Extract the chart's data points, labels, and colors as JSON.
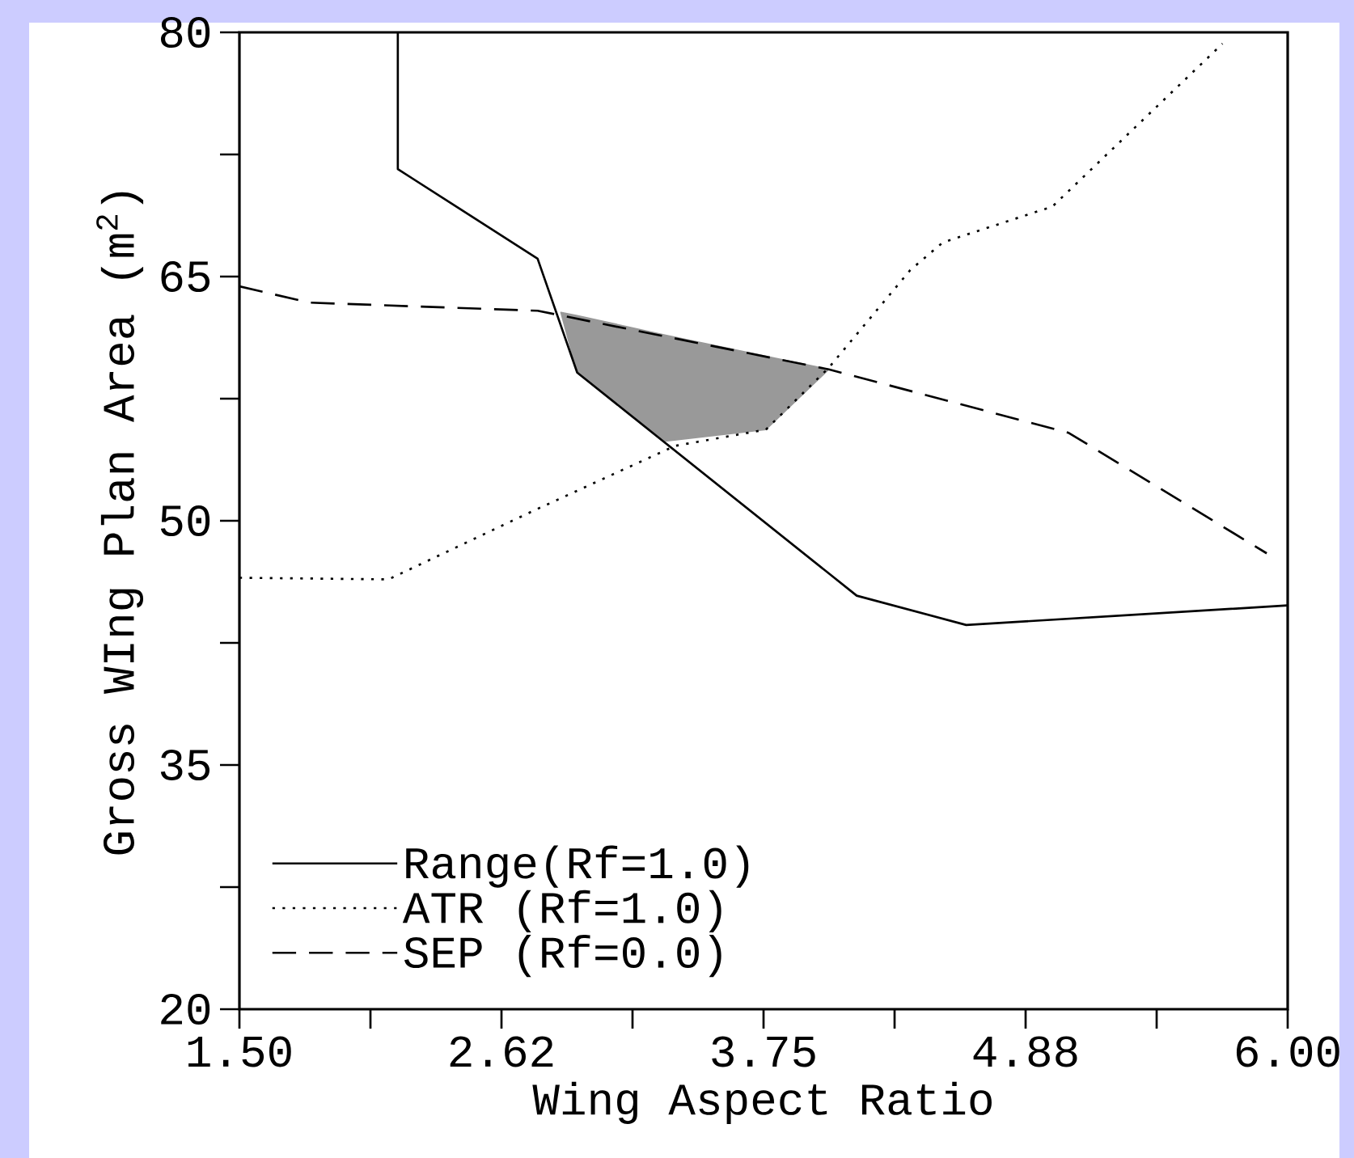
{
  "chart_data": {
    "type": "line",
    "xlabel": "Wing Aspect Ratio",
    "ylabel": "Gross WIng Plan Area (m$^{2}$)",
    "xlim": [
      1.5,
      6.0
    ],
    "ylim": [
      20,
      80
    ],
    "xticks": [
      {
        "value": 1.5,
        "label": "1.50"
      },
      {
        "value": 2.0625,
        "label": null
      },
      {
        "value": 2.625,
        "label": "2.62"
      },
      {
        "value": 3.1875,
        "label": null
      },
      {
        "value": 3.75,
        "label": "3.75"
      },
      {
        "value": 4.3125,
        "label": null
      },
      {
        "value": 4.875,
        "label": "4.88"
      },
      {
        "value": 5.4375,
        "label": null
      },
      {
        "value": 6.0,
        "label": "6.00"
      }
    ],
    "yticks": [
      20,
      {
        "value": 27.5,
        "label": null
      },
      35,
      {
        "value": 42.5,
        "label": null
      },
      50,
      {
        "value": 57.5,
        "label": null
      },
      65,
      {
        "value": 72.5,
        "label": null
      },
      80
    ],
    "grid": false,
    "legend": "bottom left",
    "series": [
      {
        "type": "area",
        "color": "#999999",
        "x": [
          2.88,
          2.95,
          3.33,
          3.76,
          4.03,
          3.76,
          3.33,
          2.95
        ],
        "values": [
          62.8,
          62.6,
          61.4,
          60.1,
          59.3,
          55.6,
          54.9,
          59.1
        ]
      },
      {
        "name": "Range(Rf=1.0)",
        "color": "#000000",
        "line_style": "solid",
        "x": [
          2.18,
          2.18,
          2.78,
          2.95,
          4.15,
          4.62,
          6.0
        ],
        "values": [
          80,
          71.6,
          66.1,
          59.1,
          45.4,
          43.6,
          44.8
        ]
      },
      {
        "name": "ATR  (Rf=1.0)",
        "color": "#000000",
        "line_style": "dotted",
        "x": [
          1.5,
          2.14,
          2.76,
          3.37,
          3.76,
          4.03,
          4.38,
          4.52,
          4.99,
          5.72
        ],
        "values": [
          46.5,
          46.4,
          50.6,
          54.6,
          55.6,
          59.4,
          65.4,
          67.1,
          69.3,
          79.3
        ]
      },
      {
        "name": "SEP  (Rf=0.0)",
        "color": "#000000",
        "line_style": "dashed",
        "x": [
          1.5,
          1.8,
          2.78,
          4.03,
          5.06,
          5.91
        ],
        "values": [
          64.4,
          63.4,
          62.9,
          59.3,
          55.4,
          48.0
        ]
      }
    ]
  }
}
